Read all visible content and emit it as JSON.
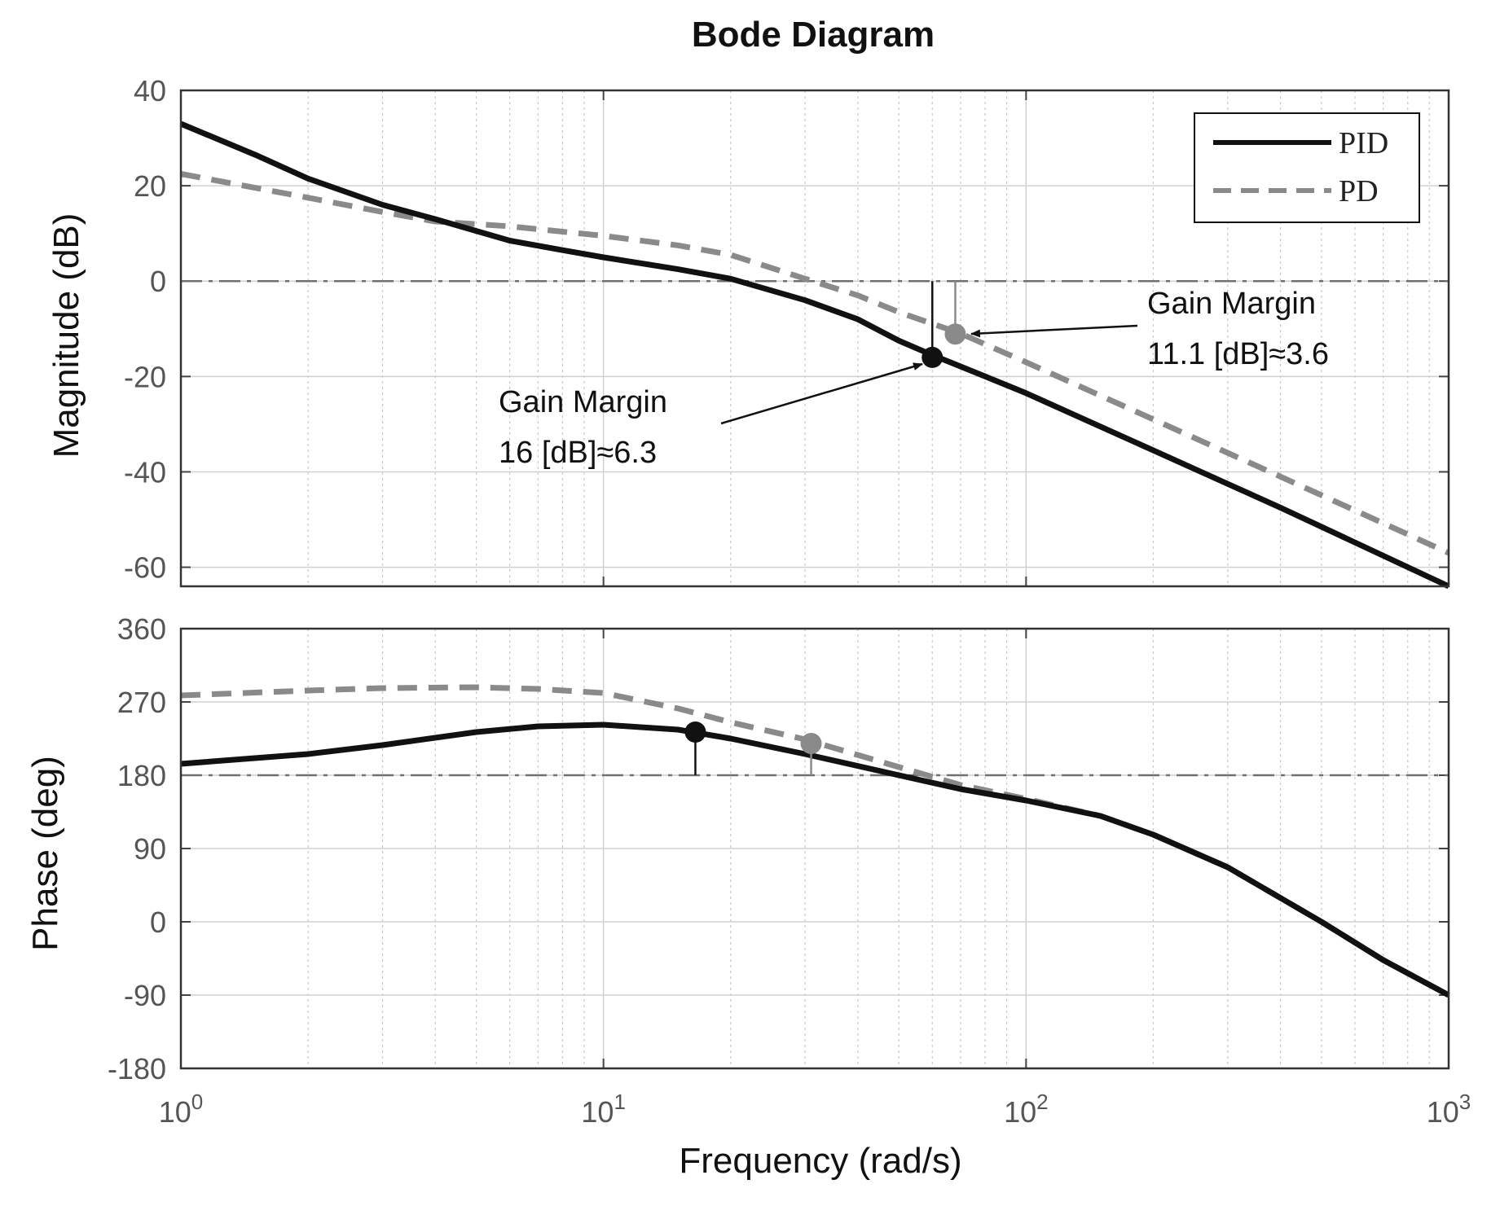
{
  "chart_data": {
    "type": "line",
    "title": "Bode Diagram",
    "xlabel": "Frequency  (rad/s)",
    "xscale": "log",
    "xlim": [
      1,
      1000
    ],
    "x_ticks": [
      {
        "base": "10",
        "exp": "0",
        "value": 1
      },
      {
        "base": "10",
        "exp": "1",
        "value": 10
      },
      {
        "base": "10",
        "exp": "2",
        "value": 100
      },
      {
        "base": "10",
        "exp": "3",
        "value": 1000
      }
    ],
    "grid": true,
    "legend": {
      "placement": "top-right",
      "entries": [
        {
          "label": "PID",
          "style": "solid",
          "color": "#111111"
        },
        {
          "label": "PD",
          "style": "dashed",
          "color": "#8a8a8a"
        }
      ]
    },
    "magnitude": {
      "ylabel": "Magnitude (dB)",
      "ylim": [
        -64,
        40
      ],
      "y_ticks": [
        "40",
        "20",
        "0",
        "-20",
        "-40",
        "-60"
      ],
      "y_tick_values": [
        40,
        20,
        0,
        -20,
        -40,
        -60
      ],
      "reference_line": 0,
      "series": [
        {
          "name": "PID",
          "x": [
            1,
            1.5,
            2,
            3,
            4,
            6,
            8,
            10,
            15,
            20,
            30,
            40,
            50,
            60,
            80,
            100,
            200,
            400,
            1000
          ],
          "y": [
            33,
            26.5,
            21.5,
            16,
            13,
            8.5,
            6.5,
            5,
            2.5,
            0.5,
            -4,
            -8,
            -12.5,
            -15.5,
            -20,
            -23.5,
            -35.5,
            -47.5,
            -64
          ]
        },
        {
          "name": "PD",
          "x": [
            1,
            2,
            3,
            4,
            6,
            10,
            15,
            20,
            30,
            40,
            50,
            70,
            100,
            200,
            400,
            1000
          ],
          "y": [
            22.5,
            17.5,
            14.5,
            12.5,
            11.5,
            9.5,
            7.5,
            5.5,
            0.5,
            -3,
            -6.5,
            -11,
            -17,
            -29,
            -41,
            -57
          ]
        }
      ],
      "markers": [
        {
          "series": "PID",
          "x": 60,
          "y": -16,
          "color": "#111111"
        },
        {
          "series": "PD",
          "x": 68,
          "y": -11.1,
          "color": "#8a8a8a"
        }
      ],
      "annotations": [
        {
          "line1": "Gain Margin",
          "line2": "11.1 [dB]≈3.6",
          "points_to": "PD"
        },
        {
          "line1": "Gain Margin",
          "line2": "16 [dB]≈6.3",
          "points_to": "PID"
        }
      ]
    },
    "phase": {
      "ylabel": "Phase (deg)",
      "ylim": [
        -180,
        360
      ],
      "y_ticks": [
        "360",
        "270",
        "180",
        "90",
        "0",
        "-90",
        "-180"
      ],
      "y_tick_values": [
        360,
        270,
        180,
        90,
        0,
        -90,
        -180
      ],
      "reference_line": 180,
      "series": [
        {
          "name": "PID",
          "x": [
            1,
            2,
            3,
            5,
            7,
            10,
            15,
            20,
            30,
            50,
            70,
            100,
            150,
            200,
            300,
            500,
            700,
            1000
          ],
          "y": [
            194,
            206,
            217,
            233,
            240,
            242,
            236,
            225,
            206,
            180,
            163,
            149,
            130,
            107,
            67,
            0,
            -47,
            -90
          ]
        },
        {
          "name": "PD",
          "x": [
            1,
            2,
            3,
            5,
            7,
            10,
            15,
            20,
            30,
            50,
            70,
            100,
            150,
            200,
            300,
            500,
            700,
            1000
          ],
          "y": [
            278,
            284,
            287,
            288,
            286,
            281,
            262,
            245,
            224,
            190,
            168,
            151,
            130,
            107,
            67,
            0,
            -47,
            -90
          ]
        }
      ],
      "markers": [
        {
          "series": "PID",
          "x": 16.5,
          "y": 233,
          "color": "#111111"
        },
        {
          "series": "PD",
          "x": 31,
          "y": 219,
          "color": "#8a8a8a"
        }
      ]
    }
  }
}
